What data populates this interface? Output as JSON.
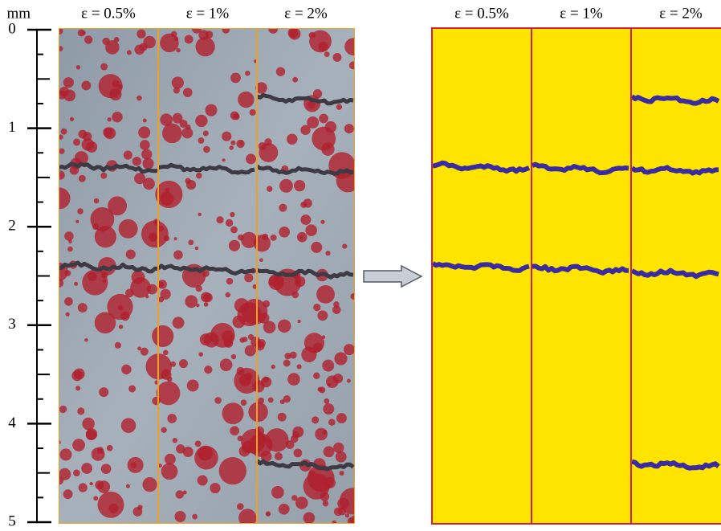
{
  "ruler": {
    "unit": "mm",
    "ticks": [
      0,
      1,
      2,
      3,
      4,
      5
    ]
  },
  "left_panel": {
    "columns": [
      "ε = 0.5%",
      "ε = 1%",
      "ε = 2%"
    ]
  },
  "right_panel": {
    "columns": [
      "ε = 0.5%",
      "ε = 1%",
      "ε = 2%"
    ]
  }
}
